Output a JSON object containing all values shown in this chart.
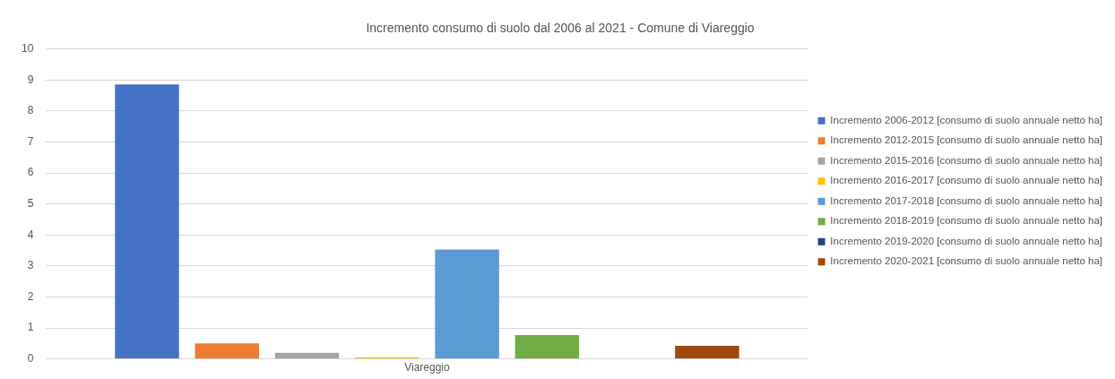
{
  "chart_data": {
    "type": "bar",
    "title": "Incremento consumo di suolo dal 2006 al 2021 - Comune di Viareggio",
    "categories": [
      "Viareggio"
    ],
    "series": [
      {
        "name": "Incremento 2006-2012 [consumo di suolo annuale netto ha]",
        "color": "#4472c4",
        "values": [
          8.86
        ]
      },
      {
        "name": "Incremento 2012-2015 [consumo di suolo annuale netto ha]",
        "color": "#ed7d31",
        "values": [
          0.5
        ]
      },
      {
        "name": "Incremento 2015-2016 [consumo di suolo annuale netto ha]",
        "color": "#a5a5a5",
        "values": [
          0.2
        ]
      },
      {
        "name": "Incremento 2016-2017 [consumo di suolo annuale netto ha]",
        "color": "#ffc000",
        "values": [
          0.05
        ]
      },
      {
        "name": "Incremento 2017-2018 [consumo di suolo annuale netto ha]",
        "color": "#5b9bd5",
        "values": [
          3.53
        ]
      },
      {
        "name": "Incremento 2018-2019 [consumo di suolo annuale netto ha]",
        "color": "#70ad47",
        "values": [
          0.77
        ]
      },
      {
        "name": "Incremento 2019-2020 [consumo di suolo annuale netto ha]",
        "color": "#264478",
        "values": [
          0
        ]
      },
      {
        "name": "Incremento 2020-2021 [consumo di suolo annuale netto ha]",
        "color": "#9e480e",
        "values": [
          0.42
        ]
      }
    ],
    "ylim": [
      0,
      10
    ],
    "yticks": [
      0,
      1,
      2,
      3,
      4,
      5,
      6,
      7,
      8,
      9,
      10
    ],
    "grid": "y",
    "legend": "right"
  }
}
